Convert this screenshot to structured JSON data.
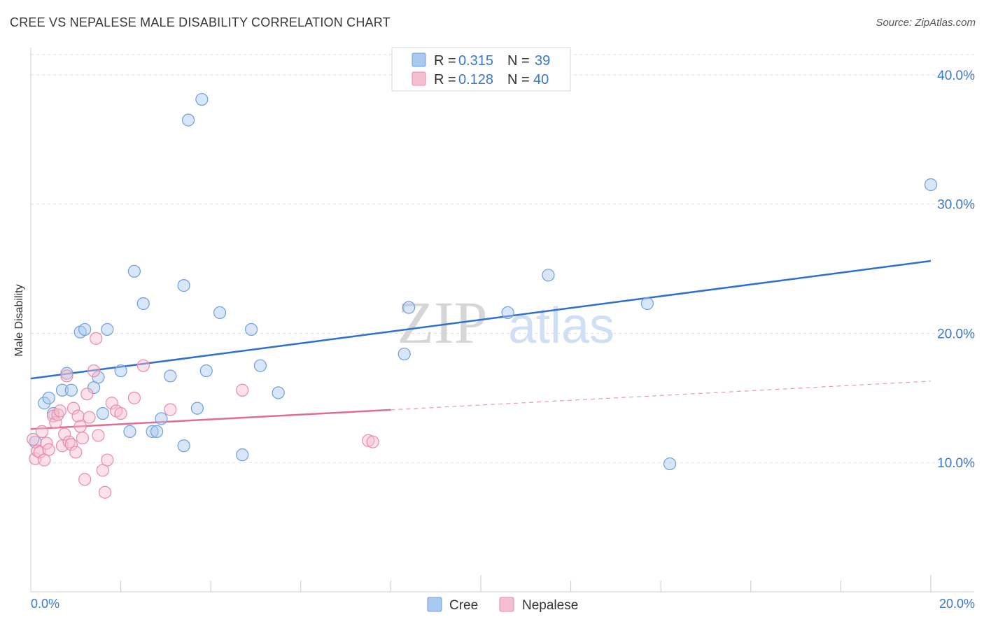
{
  "header": {
    "title": "CREE VS NEPALESE MALE DISABILITY CORRELATION CHART",
    "source": "Source: ZipAtlas.com"
  },
  "watermark": {
    "zip": "ZIP",
    "atlas": "atlas"
  },
  "legend": {
    "rows": [
      {
        "r_label": "R = ",
        "r_value": "0.315",
        "n_label": "N = ",
        "n_value": "39",
        "color": "#a9c8f0",
        "stroke": "#6f9fdc"
      },
      {
        "r_label": "R = ",
        "r_value": "0.128",
        "n_label": "N = ",
        "n_value": "40",
        "color": "#f6bfd0",
        "stroke": "#e98aaa"
      }
    ]
  },
  "chart_data": {
    "type": "scatter",
    "title": "CREE VS NEPALESE MALE DISABILITY CORRELATION CHART",
    "xlabel": "",
    "ylabel": "Male Disability",
    "xlim": [
      0,
      20
    ],
    "ylim": [
      0,
      42
    ],
    "x_tick_labels": [
      "0.0%",
      "20.0%"
    ],
    "y_ticks": [
      10,
      20,
      30,
      40
    ],
    "y_tick_labels": [
      "10.0%",
      "20.0%",
      "30.0%",
      "40.0%"
    ],
    "grid": true,
    "legend_position": "top-center",
    "series": [
      {
        "name": "Cree",
        "color": "#a9c8f0",
        "stroke": "#6f9fdc",
        "trend_color": "#2f6fd0",
        "trend": {
          "x0": 0,
          "y0": 16.5,
          "x1": 20,
          "y1": 25.6,
          "solid_until": 20
        },
        "points": [
          [
            0.1,
            11.6
          ],
          [
            0.3,
            14.6
          ],
          [
            0.4,
            15.0
          ],
          [
            0.5,
            13.8
          ],
          [
            0.7,
            15.6
          ],
          [
            0.8,
            16.9
          ],
          [
            0.9,
            15.6
          ],
          [
            1.1,
            20.1
          ],
          [
            1.2,
            20.3
          ],
          [
            1.4,
            15.8
          ],
          [
            1.5,
            16.6
          ],
          [
            1.6,
            13.8
          ],
          [
            1.7,
            20.3
          ],
          [
            2.0,
            17.1
          ],
          [
            2.2,
            12.4
          ],
          [
            2.3,
            24.8
          ],
          [
            2.5,
            22.3
          ],
          [
            2.7,
            12.4
          ],
          [
            2.8,
            12.4
          ],
          [
            2.9,
            13.4
          ],
          [
            3.1,
            16.7
          ],
          [
            3.4,
            11.3
          ],
          [
            3.4,
            23.7
          ],
          [
            3.5,
            36.5
          ],
          [
            3.7,
            14.2
          ],
          [
            3.8,
            38.1
          ],
          [
            3.9,
            17.1
          ],
          [
            4.2,
            21.6
          ],
          [
            4.7,
            10.6
          ],
          [
            4.9,
            20.3
          ],
          [
            5.1,
            17.5
          ],
          [
            5.5,
            15.4
          ],
          [
            8.3,
            18.4
          ],
          [
            8.4,
            22.0
          ],
          [
            10.6,
            21.6
          ],
          [
            11.5,
            24.5
          ],
          [
            13.7,
            22.3
          ],
          [
            14.2,
            9.9
          ],
          [
            20.0,
            31.5
          ]
        ]
      },
      {
        "name": "Nepalese",
        "color": "#f6bfd0",
        "stroke": "#e98aaa",
        "trend_color": "#e06c98",
        "trend": {
          "x0": 0,
          "y0": 12.6,
          "x1": 20,
          "y1": 16.3,
          "solid_until": 8.0
        },
        "points": [
          [
            0.05,
            11.8
          ],
          [
            0.1,
            10.3
          ],
          [
            0.15,
            10.9
          ],
          [
            0.2,
            10.8
          ],
          [
            0.25,
            12.4
          ],
          [
            0.3,
            10.2
          ],
          [
            0.35,
            11.5
          ],
          [
            0.4,
            11.0
          ],
          [
            0.5,
            13.6
          ],
          [
            0.55,
            13.1
          ],
          [
            0.6,
            13.7
          ],
          [
            0.65,
            14.0
          ],
          [
            0.7,
            11.3
          ],
          [
            0.75,
            12.2
          ],
          [
            0.8,
            16.7
          ],
          [
            0.85,
            11.6
          ],
          [
            0.9,
            11.4
          ],
          [
            0.95,
            14.2
          ],
          [
            1.0,
            10.8
          ],
          [
            1.05,
            13.6
          ],
          [
            1.1,
            12.8
          ],
          [
            1.15,
            11.9
          ],
          [
            1.2,
            8.7
          ],
          [
            1.25,
            15.3
          ],
          [
            1.3,
            13.5
          ],
          [
            1.4,
            17.1
          ],
          [
            1.45,
            19.6
          ],
          [
            1.5,
            12.1
          ],
          [
            1.6,
            9.4
          ],
          [
            1.65,
            7.7
          ],
          [
            1.7,
            10.2
          ],
          [
            1.8,
            14.6
          ],
          [
            1.9,
            14.0
          ],
          [
            2.0,
            13.8
          ],
          [
            2.3,
            15.0
          ],
          [
            2.5,
            17.5
          ],
          [
            3.1,
            14.1
          ],
          [
            4.7,
            15.6
          ],
          [
            7.5,
            11.7
          ],
          [
            7.6,
            11.6
          ]
        ]
      }
    ]
  }
}
